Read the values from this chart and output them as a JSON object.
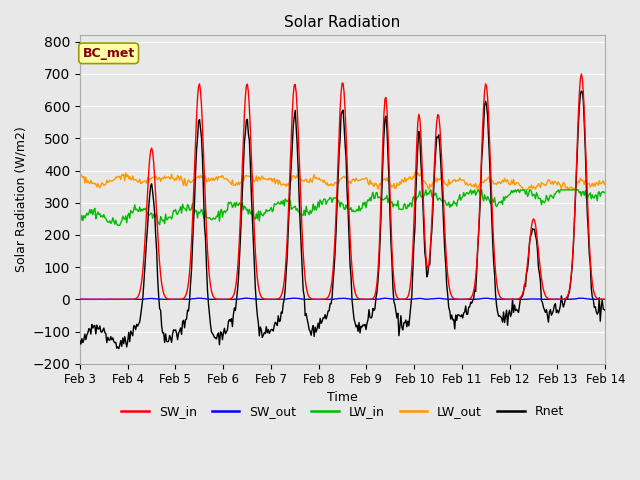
{
  "title": "Solar Radiation",
  "xlabel": "Time",
  "ylabel": "Solar Radiation (W/m2)",
  "ylim": [
    -200,
    820
  ],
  "yticks": [
    -200,
    -100,
    0,
    100,
    200,
    300,
    400,
    500,
    600,
    700,
    800
  ],
  "xtick_labels": [
    "Feb 3",
    "Feb 4",
    "Feb 5",
    "Feb 6",
    "Feb 7",
    "Feb 8",
    "Feb 9",
    "Feb 10",
    "Feb 11",
    "Feb 12",
    "Feb 13",
    "Feb 14"
  ],
  "series_colors": {
    "SW_in": "#ff0000",
    "SW_out": "#0000ff",
    "LW_in": "#00bb00",
    "LW_out": "#ff9900",
    "Rnet": "#000000"
  },
  "bg_color": "#e8e8e8",
  "plot_bg_color": "#e8e8e8",
  "annotation_text": "BC_met",
  "annotation_bg": "#ffffaa",
  "annotation_border": "#999900",
  "annotation_text_color": "#880000",
  "grid_color": "#ffffff",
  "linewidth": 1.0
}
